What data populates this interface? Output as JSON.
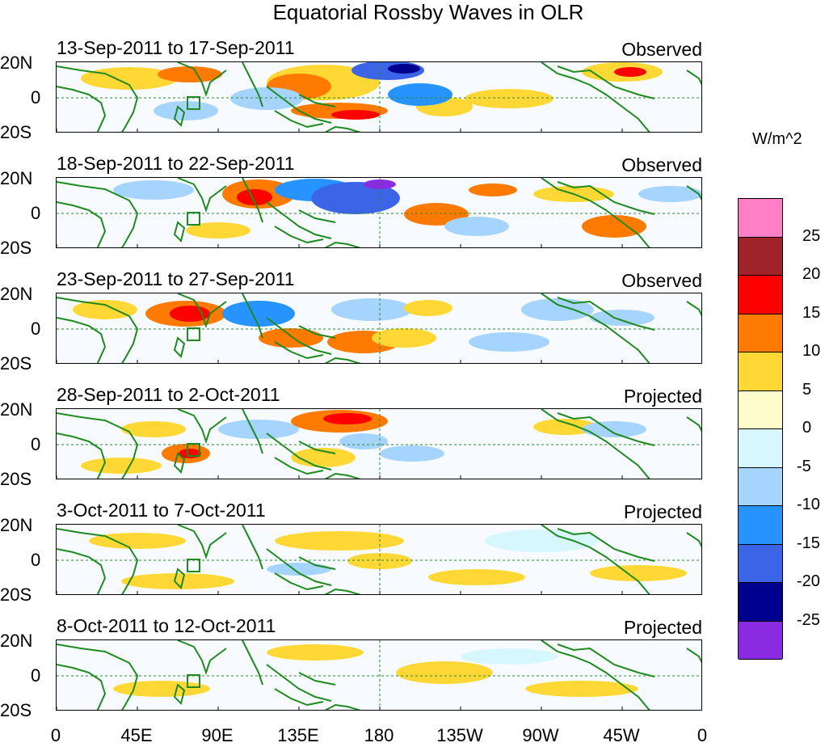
{
  "title": "Equatorial Rossby Waves in OLR",
  "units": "W/m^2",
  "y_ticks": [
    "20N",
    "0",
    "20S"
  ],
  "x_ticks": [
    "0",
    "45E",
    "90E",
    "135E",
    "180",
    "135W",
    "90W",
    "45W",
    "0"
  ],
  "panels": [
    {
      "date_range": "13-Sep-2011 to 17-Sep-2011",
      "type": "Observed"
    },
    {
      "date_range": "18-Sep-2011 to 22-Sep-2011",
      "type": "Observed"
    },
    {
      "date_range": "23-Sep-2011 to 27-Sep-2011",
      "type": "Observed"
    },
    {
      "date_range": "28-Sep-2011 to 2-Oct-2011",
      "type": "Projected"
    },
    {
      "date_range": "3-Oct-2011 to 7-Oct-2011",
      "type": "Projected"
    },
    {
      "date_range": "8-Oct-2011 to 12-Oct-2011",
      "type": "Projected"
    }
  ],
  "colorbar": {
    "labels": [
      "25",
      "20",
      "15",
      "10",
      "5",
      "0",
      "-5",
      "-10",
      "-15",
      "-20",
      "-25"
    ],
    "colors": [
      "#ff7fc7",
      "#a0232a",
      "#ff0000",
      "#ff7a00",
      "#ffd835",
      "#fffccc",
      "#d7f7ff",
      "#a5d4ff",
      "#2793ff",
      "#3c64e6",
      "#00008f",
      "#8a2be2"
    ]
  }
}
